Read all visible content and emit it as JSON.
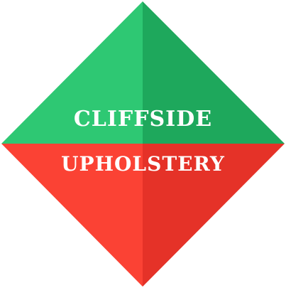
{
  "logo": {
    "line1": "CLIFFSIDE",
    "line2": "UPHOLSTERY",
    "icon": "diamond-logo-mark",
    "colors": {
      "green_light": "#2ec873",
      "green_dark": "#1ea85c",
      "red_light": "#fb4234",
      "red_dark": "#e53228",
      "text": "#ffffff"
    }
  }
}
